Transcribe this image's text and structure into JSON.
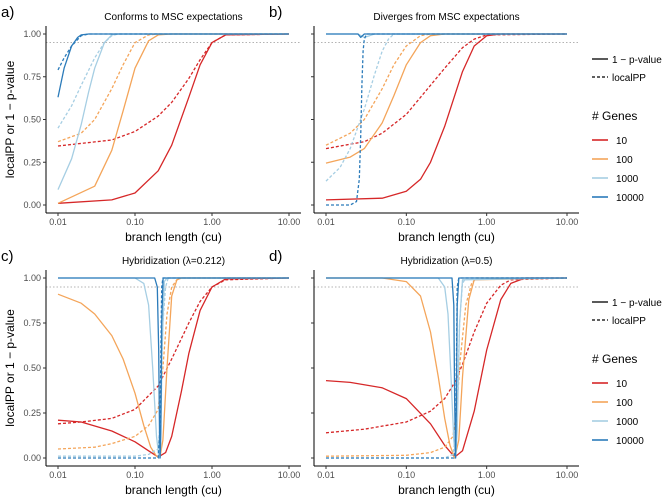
{
  "chart_data": {
    "type": "line",
    "x_scale": "log",
    "xlabel": "branch length (cu)",
    "ylabel": "localPP or 1 − p-value",
    "x_ticks": [
      0.01,
      0.1,
      1.0,
      10.0
    ],
    "x_tick_labels": [
      "0.01",
      "0.10",
      "1.00",
      "10.00"
    ],
    "y_ticks": [
      0,
      0.25,
      0.5,
      0.75,
      1
    ],
    "y_tick_labels": [
      "0.00",
      "0.25",
      "0.50",
      "0.75",
      "1.00"
    ],
    "xlim": [
      0.01,
      10
    ],
    "ylim": [
      0,
      1
    ],
    "reference_line_y": 0.95,
    "colors": {
      "10": "#d62728",
      "100": "#f4a55a",
      "1000": "#a6cee3",
      "10000": "#2b7bba"
    },
    "legend_top": {
      "items": [
        {
          "label": "1 − p-value",
          "style": "solid"
        },
        {
          "label": "localPP",
          "style": "dashed"
        }
      ]
    },
    "legend_bottom": {
      "title": "# Genes",
      "items": [
        "10",
        "100",
        "1000",
        "10000"
      ]
    },
    "panels": [
      {
        "letter": "a)",
        "title": "Conforms to MSC expectations",
        "series": [
          {
            "genes": "10",
            "metric": "1 - p-value",
            "x": [
              0.01,
              0.05,
              0.1,
              0.2,
              0.3,
              0.5,
              0.7,
              1.0,
              1.5,
              10
            ],
            "y": [
              0.01,
              0.03,
              0.07,
              0.2,
              0.35,
              0.63,
              0.82,
              0.95,
              0.995,
              1.0
            ]
          },
          {
            "genes": "10",
            "metric": "localPP",
            "x": [
              0.01,
              0.05,
              0.1,
              0.2,
              0.3,
              0.5,
              0.7,
              1.0,
              1.5,
              10
            ],
            "y": [
              0.345,
              0.38,
              0.43,
              0.52,
              0.6,
              0.74,
              0.85,
              0.95,
              0.995,
              1.0
            ]
          },
          {
            "genes": "100",
            "metric": "1 - p-value",
            "x": [
              0.01,
              0.03,
              0.05,
              0.07,
              0.1,
              0.15,
              0.2,
              0.3,
              10
            ],
            "y": [
              0.01,
              0.11,
              0.32,
              0.55,
              0.8,
              0.96,
              0.995,
              1.0,
              1.0
            ]
          },
          {
            "genes": "100",
            "metric": "localPP",
            "x": [
              0.01,
              0.02,
              0.03,
              0.05,
              0.07,
              0.1,
              0.15,
              0.2,
              10
            ],
            "y": [
              0.37,
              0.42,
              0.5,
              0.68,
              0.82,
              0.95,
              0.995,
              1.0,
              1.0
            ]
          },
          {
            "genes": "1000",
            "metric": "1 - p-value",
            "x": [
              0.01,
              0.015,
              0.02,
              0.025,
              0.03,
              0.04,
              0.05,
              0.06,
              10
            ],
            "y": [
              0.09,
              0.27,
              0.47,
              0.66,
              0.8,
              0.95,
              0.995,
              1.0,
              1.0
            ]
          },
          {
            "genes": "1000",
            "metric": "localPP",
            "x": [
              0.01,
              0.015,
              0.02,
              0.03,
              0.04,
              0.05,
              0.06,
              10
            ],
            "y": [
              0.45,
              0.58,
              0.7,
              0.86,
              0.95,
              0.99,
              1.0,
              1.0
            ]
          },
          {
            "genes": "10000",
            "metric": "1 - p-value",
            "x": [
              0.01,
              0.012,
              0.015,
              0.018,
              0.02,
              0.025,
              0.03,
              10
            ],
            "y": [
              0.63,
              0.8,
              0.93,
              0.98,
              0.995,
              1.0,
              1.0,
              1.0
            ]
          },
          {
            "genes": "10000",
            "metric": "localPP",
            "x": [
              0.01,
              0.012,
              0.015,
              0.02,
              0.025,
              0.03,
              10
            ],
            "y": [
              0.79,
              0.86,
              0.93,
              0.99,
              1.0,
              1.0,
              1.0
            ]
          }
        ]
      },
      {
        "letter": "b)",
        "title": "Diverges from MSC expectations",
        "series": [
          {
            "genes": "10",
            "metric": "1 - p-value",
            "x": [
              0.01,
              0.05,
              0.1,
              0.15,
              0.2,
              0.3,
              0.5,
              0.7,
              1.0,
              1.5,
              10
            ],
            "y": [
              0.03,
              0.04,
              0.08,
              0.15,
              0.25,
              0.46,
              0.78,
              0.93,
              0.99,
              1.0,
              1.0
            ]
          },
          {
            "genes": "10",
            "metric": "localPP",
            "x": [
              0.01,
              0.03,
              0.05,
              0.1,
              0.2,
              0.3,
              0.5,
              0.7,
              1.0,
              10
            ],
            "y": [
              0.33,
              0.37,
              0.42,
              0.53,
              0.7,
              0.8,
              0.92,
              0.97,
              0.995,
              1.0
            ]
          },
          {
            "genes": "100",
            "metric": "1 - p-value",
            "x": [
              0.01,
              0.02,
              0.03,
              0.05,
              0.07,
              0.1,
              0.15,
              0.2,
              0.3,
              10
            ],
            "y": [
              0.245,
              0.28,
              0.33,
              0.48,
              0.64,
              0.82,
              0.95,
              0.99,
              1.0,
              1.0
            ]
          },
          {
            "genes": "100",
            "metric": "localPP",
            "x": [
              0.01,
              0.02,
              0.03,
              0.05,
              0.07,
              0.1,
              0.15,
              0.2,
              10
            ],
            "y": [
              0.35,
              0.42,
              0.5,
              0.68,
              0.82,
              0.93,
              0.99,
              1.0,
              1.0
            ]
          },
          {
            "genes": "1000",
            "metric": "1 - p-value",
            "x": [
              0.01,
              0.02,
              0.025,
              0.03,
              0.035,
              0.04,
              0.05,
              0.06,
              10
            ],
            "y": [
              1.0,
              1.0,
              1.0,
              0.98,
              0.99,
              1.0,
              1.0,
              1.0,
              1.0
            ]
          },
          {
            "genes": "1000",
            "metric": "localPP",
            "x": [
              0.01,
              0.015,
              0.02,
              0.03,
              0.04,
              0.05,
              0.06,
              0.07,
              10
            ],
            "y": [
              0.14,
              0.22,
              0.33,
              0.56,
              0.76,
              0.9,
              0.97,
              1.0,
              1.0
            ]
          },
          {
            "genes": "10000",
            "metric": "1 - p-value",
            "x": [
              0.01,
              0.02,
              0.025,
              0.027,
              0.03,
              0.035,
              10
            ],
            "y": [
              1.0,
              1.0,
              1.0,
              0.98,
              1.0,
              1.0,
              1.0
            ]
          },
          {
            "genes": "10000",
            "metric": "localPP",
            "x": [
              0.01,
              0.02,
              0.024,
              0.026,
              0.027,
              0.028,
              0.029,
              0.03,
              0.032,
              10
            ],
            "y": [
              0.0,
              0.0,
              0.02,
              0.15,
              0.4,
              0.7,
              0.9,
              0.97,
              1.0,
              1.0
            ]
          }
        ]
      },
      {
        "letter": "c)",
        "title": "Hybridization (λ=0.212)",
        "series": [
          {
            "genes": "10",
            "metric": "1 - p-value",
            "x": [
              0.01,
              0.02,
              0.05,
              0.1,
              0.15,
              0.2,
              0.25,
              0.3,
              0.4,
              0.5,
              0.7,
              1.0,
              1.5,
              10
            ],
            "y": [
              0.21,
              0.2,
              0.15,
              0.09,
              0.04,
              0.005,
              0.03,
              0.12,
              0.37,
              0.58,
              0.82,
              0.95,
              0.995,
              1.0
            ]
          },
          {
            "genes": "10",
            "metric": "localPP",
            "x": [
              0.01,
              0.02,
              0.05,
              0.1,
              0.2,
              0.3,
              0.5,
              0.7,
              1.0,
              1.5,
              10
            ],
            "y": [
              0.19,
              0.2,
              0.22,
              0.27,
              0.4,
              0.55,
              0.75,
              0.87,
              0.95,
              0.99,
              1.0
            ]
          },
          {
            "genes": "100",
            "metric": "1 - p-value",
            "x": [
              0.01,
              0.02,
              0.03,
              0.05,
              0.07,
              0.1,
              0.13,
              0.16,
              0.19,
              0.21,
              0.23,
              0.26,
              0.3,
              0.35,
              0.4,
              10
            ],
            "y": [
              0.91,
              0.86,
              0.8,
              0.68,
              0.55,
              0.36,
              0.18,
              0.06,
              0.01,
              0.0,
              0.1,
              0.5,
              0.9,
              0.99,
              1.0,
              1.0
            ]
          },
          {
            "genes": "100",
            "metric": "localPP",
            "x": [
              0.01,
              0.03,
              0.05,
              0.1,
              0.15,
              0.2,
              0.23,
              0.26,
              0.3,
              0.35,
              0.4,
              10
            ],
            "y": [
              0.05,
              0.06,
              0.08,
              0.12,
              0.18,
              0.27,
              0.5,
              0.8,
              0.95,
              0.99,
              1.0,
              1.0
            ]
          },
          {
            "genes": "1000",
            "metric": "1 - p-value",
            "x": [
              0.01,
              0.1,
              0.13,
              0.15,
              0.17,
              0.19,
              0.205,
              0.215,
              0.225,
              0.24,
              0.26,
              10
            ],
            "y": [
              1.0,
              1.0,
              0.97,
              0.85,
              0.5,
              0.12,
              0.0,
              0.05,
              0.6,
              0.98,
              1.0,
              1.0
            ]
          },
          {
            "genes": "1000",
            "metric": "localPP",
            "x": [
              0.01,
              0.1,
              0.15,
              0.2,
              0.21,
              0.22,
              0.23,
              0.25,
              0.27,
              10
            ],
            "y": [
              0.01,
              0.01,
              0.02,
              0.05,
              0.15,
              0.45,
              0.75,
              0.95,
              1.0,
              1.0
            ]
          },
          {
            "genes": "10000",
            "metric": "1 - p-value",
            "x": [
              0.01,
              0.18,
              0.195,
              0.203,
              0.208,
              0.212,
              0.216,
              0.222,
              0.232,
              10
            ],
            "y": [
              1.0,
              1.0,
              0.95,
              0.6,
              0.15,
              0.0,
              0.15,
              0.75,
              1.0,
              1.0
            ]
          },
          {
            "genes": "10000",
            "metric": "localPP",
            "x": [
              0.01,
              0.2,
              0.212,
              0.218,
              0.222,
              0.23,
              10
            ],
            "y": [
              0.0,
              0.0,
              0.2,
              0.7,
              0.95,
              1.0,
              1.0
            ]
          }
        ]
      },
      {
        "letter": "d)",
        "title": "Hybridization (λ=0.5)",
        "series": [
          {
            "genes": "10",
            "metric": "1 - p-value",
            "x": [
              0.01,
              0.02,
              0.05,
              0.1,
              0.2,
              0.3,
              0.4,
              0.5,
              0.7,
              1.0,
              1.5,
              2.0,
              3.0,
              10
            ],
            "y": [
              0.43,
              0.42,
              0.39,
              0.33,
              0.19,
              0.07,
              0.005,
              0.04,
              0.26,
              0.6,
              0.88,
              0.97,
              1.0,
              1.0
            ]
          },
          {
            "genes": "10",
            "metric": "localPP",
            "x": [
              0.01,
              0.03,
              0.1,
              0.2,
              0.3,
              0.4,
              0.5,
              0.7,
              1.0,
              1.5,
              2.0,
              10
            ],
            "y": [
              0.14,
              0.16,
              0.2,
              0.26,
              0.33,
              0.42,
              0.52,
              0.7,
              0.86,
              0.96,
              0.99,
              1.0
            ]
          },
          {
            "genes": "100",
            "metric": "1 - p-value",
            "x": [
              0.01,
              0.05,
              0.1,
              0.15,
              0.2,
              0.25,
              0.3,
              0.35,
              0.4,
              0.45,
              0.5,
              0.6,
              0.7,
              10
            ],
            "y": [
              1.0,
              1.0,
              0.98,
              0.9,
              0.7,
              0.45,
              0.22,
              0.07,
              0.0,
              0.1,
              0.45,
              0.88,
              0.99,
              1.0
            ]
          },
          {
            "genes": "100",
            "metric": "localPP",
            "x": [
              0.01,
              0.1,
              0.2,
              0.3,
              0.38,
              0.42,
              0.47,
              0.55,
              0.65,
              0.75,
              10
            ],
            "y": [
              0.01,
              0.015,
              0.03,
              0.06,
              0.12,
              0.25,
              0.55,
              0.85,
              0.97,
              1.0,
              1.0
            ]
          },
          {
            "genes": "1000",
            "metric": "1 - p-value",
            "x": [
              0.01,
              0.25,
              0.3,
              0.33,
              0.36,
              0.39,
              0.41,
              0.43,
              0.46,
              0.5,
              10
            ],
            "y": [
              1.0,
              1.0,
              0.95,
              0.8,
              0.45,
              0.1,
              0.0,
              0.15,
              0.75,
              0.99,
              1.0
            ]
          },
          {
            "genes": "1000",
            "metric": "localPP",
            "x": [
              0.01,
              0.3,
              0.38,
              0.42,
              0.44,
              0.46,
              0.5,
              0.55,
              10
            ],
            "y": [
              0.0,
              0.0,
              0.02,
              0.15,
              0.45,
              0.75,
              0.97,
              1.0,
              1.0
            ]
          },
          {
            "genes": "10000",
            "metric": "1 - p-value",
            "x": [
              0.01,
              0.37,
              0.39,
              0.4,
              0.41,
              0.42,
              0.43,
              0.45,
              10
            ],
            "y": [
              1.0,
              1.0,
              0.85,
              0.3,
              0.0,
              0.3,
              0.85,
              1.0,
              1.0
            ]
          },
          {
            "genes": "10000",
            "metric": "localPP",
            "x": [
              0.01,
              0.39,
              0.41,
              0.42,
              0.43,
              0.45,
              10
            ],
            "y": [
              0.0,
              0.0,
              0.05,
              0.5,
              0.95,
              1.0,
              1.0
            ]
          }
        ]
      }
    ]
  }
}
